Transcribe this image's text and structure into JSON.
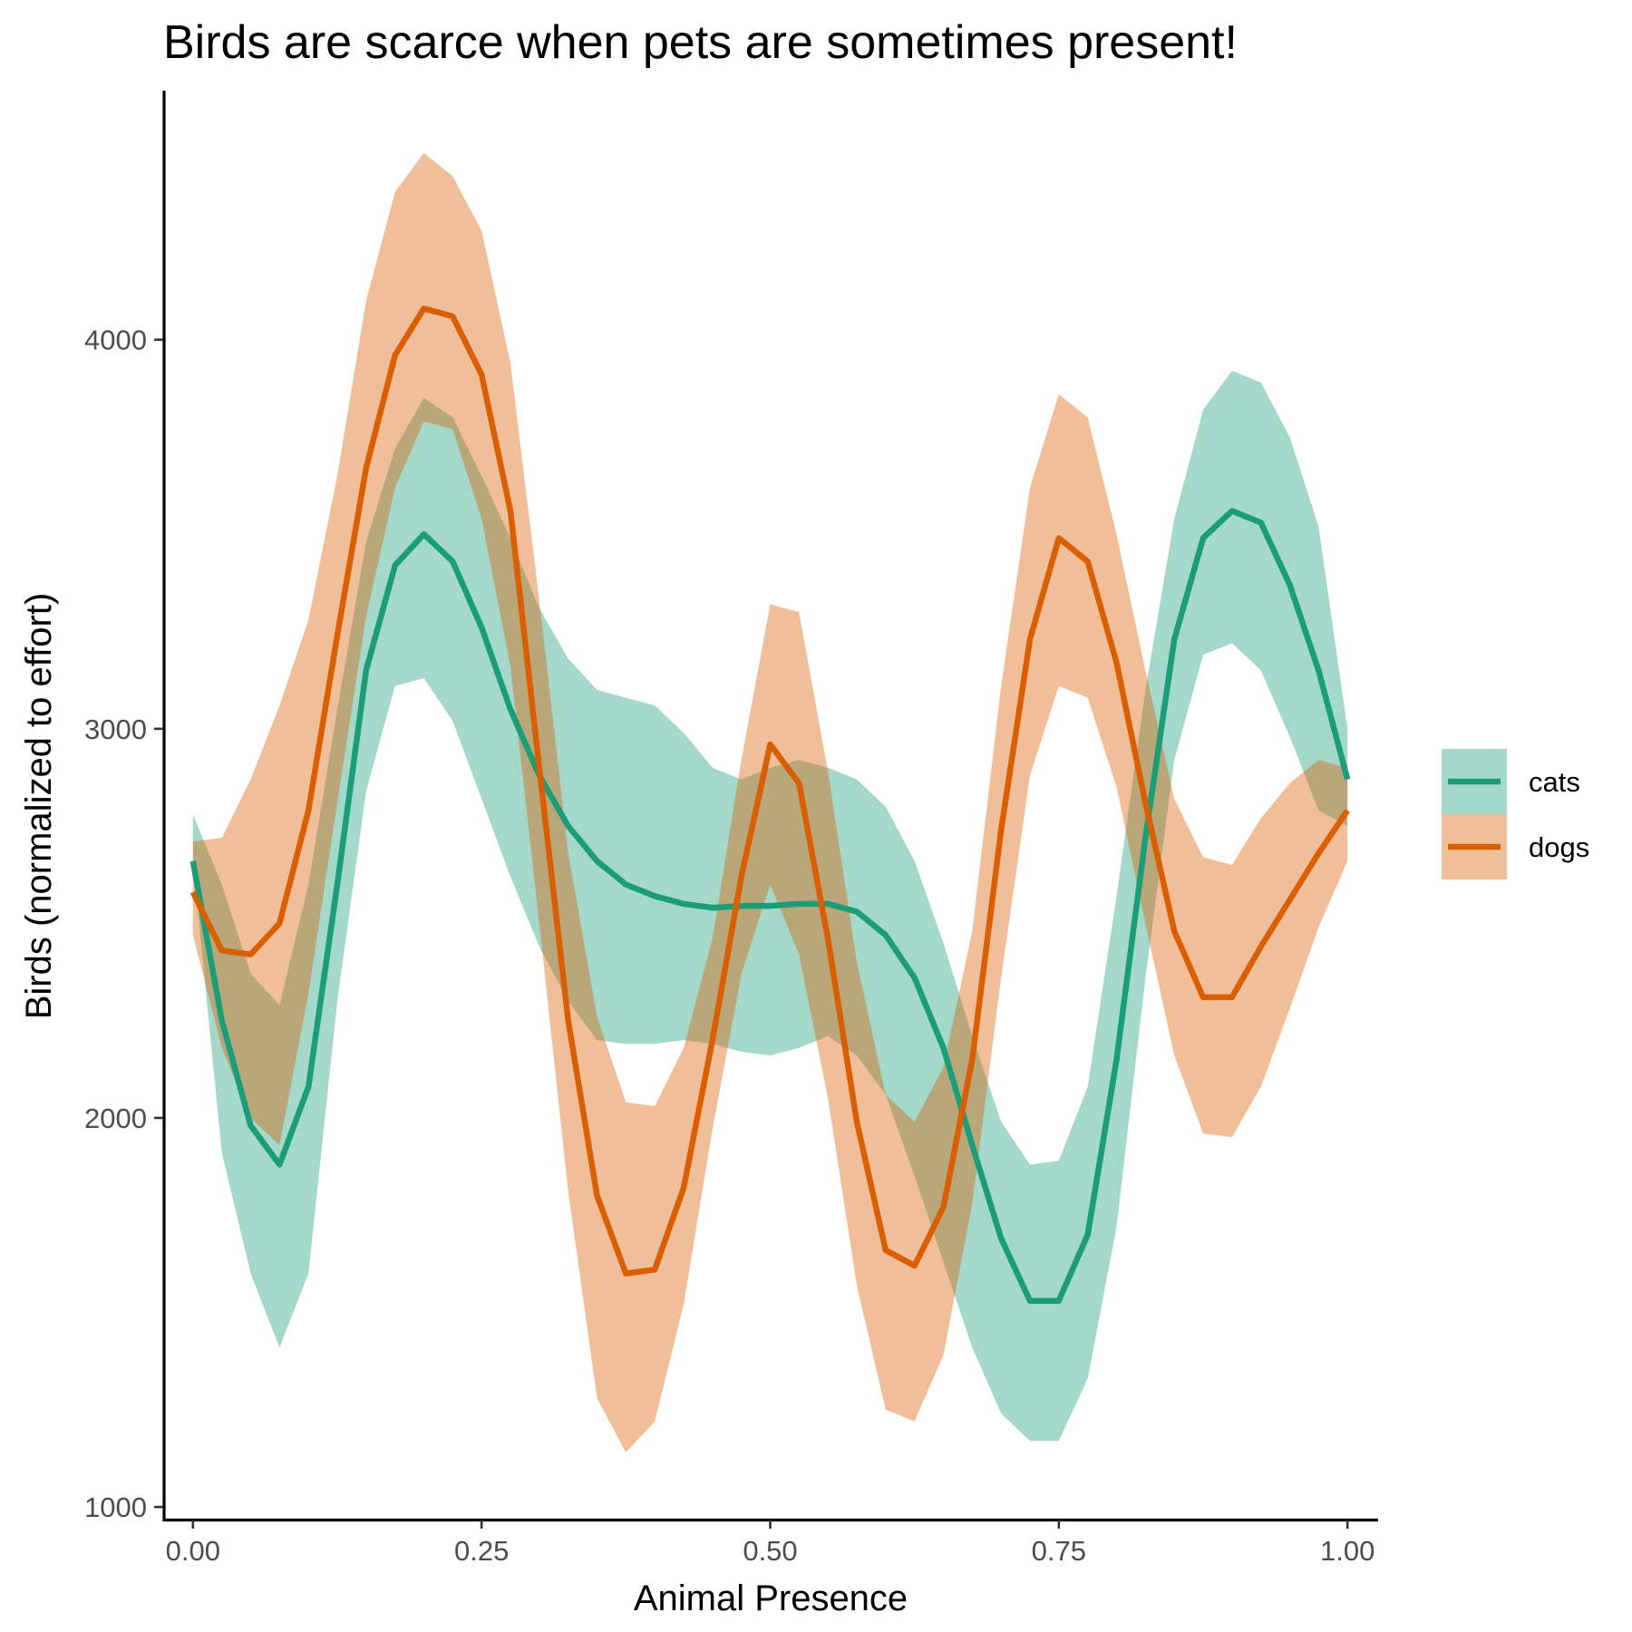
{
  "chart_data": {
    "type": "line",
    "title": "Birds are scarce when pets are sometimes present!",
    "xlabel": "Animal Presence",
    "ylabel": "Birds (normalized to effort)",
    "xlim": [
      -0.025,
      1.025
    ],
    "ylim": [
      970,
      4640
    ],
    "x_ticks": [
      0,
      0.25,
      0.5,
      0.75,
      1
    ],
    "x_tick_labels": [
      "0.00",
      "0.25",
      "0.50",
      "0.75",
      "1.00"
    ],
    "y_ticks": [
      1000,
      2000,
      3000,
      4000
    ],
    "y_tick_labels": [
      "1000",
      "2000",
      "3000",
      "4000"
    ],
    "legend_position": "right",
    "grid": false,
    "x": [
      0.0,
      0.025,
      0.05,
      0.075,
      0.1,
      0.125,
      0.15,
      0.175,
      0.2,
      0.225,
      0.25,
      0.275,
      0.3,
      0.325,
      0.35,
      0.375,
      0.4,
      0.425,
      0.45,
      0.475,
      0.5,
      0.525,
      0.55,
      0.575,
      0.6,
      0.625,
      0.65,
      0.675,
      0.7,
      0.725,
      0.75,
      0.775,
      0.8,
      0.825,
      0.85,
      0.875,
      0.9,
      0.925,
      0.95,
      0.975,
      1.0
    ],
    "series": [
      {
        "name": "cats",
        "color": "#1b9e77",
        "ribbon_color": "#a6dbca",
        "values": [
          2660,
          2250,
          1980,
          1880,
          2080,
          2600,
          3150,
          3420,
          3500,
          3430,
          3260,
          3050,
          2880,
          2750,
          2660,
          2600,
          2570,
          2550,
          2540,
          2545,
          2545,
          2550,
          2550,
          2530,
          2470,
          2360,
          2180,
          1930,
          1690,
          1530,
          1530,
          1700,
          2150,
          2720,
          3230,
          3490,
          3560,
          3530,
          3370,
          3150,
          2870
        ],
        "lower": [
          2660,
          1910,
          1600,
          1410,
          1600,
          2300,
          2840,
          3110,
          3130,
          3020,
          2820,
          2620,
          2440,
          2300,
          2200,
          2190,
          2190,
          2200,
          2190,
          2170,
          2160,
          2180,
          2210,
          2160,
          2060,
          1850,
          1630,
          1410,
          1240,
          1170,
          1170,
          1330,
          1720,
          2360,
          2920,
          3190,
          3220,
          3150,
          2980,
          2790,
          2750
        ],
        "upper": [
          2780,
          2600,
          2370,
          2290,
          2600,
          3050,
          3480,
          3720,
          3850,
          3800,
          3650,
          3490,
          3310,
          3180,
          3100,
          3080,
          3060,
          2990,
          2900,
          2870,
          2900,
          2920,
          2900,
          2870,
          2800,
          2660,
          2450,
          2210,
          1990,
          1880,
          1890,
          2080,
          2570,
          3100,
          3540,
          3820,
          3920,
          3890,
          3750,
          3520,
          3000
        ]
      },
      {
        "name": "dogs",
        "color": "#d95f02",
        "ribbon_color": "#f0be99",
        "values": [
          2580,
          2430,
          2420,
          2500,
          2790,
          3240,
          3670,
          3960,
          4080,
          4060,
          3910,
          3560,
          2900,
          2250,
          1800,
          1600,
          1610,
          1820,
          2200,
          2620,
          2960,
          2860,
          2460,
          1990,
          1660,
          1620,
          1770,
          2150,
          2740,
          3230,
          3490,
          3430,
          3170,
          2810,
          2480,
          2310,
          2310,
          2440,
          2560,
          2680,
          2790
        ],
        "lower": [
          2470,
          2180,
          2000,
          1930,
          2320,
          2810,
          3290,
          3620,
          3790,
          3770,
          3540,
          3160,
          2500,
          1810,
          1280,
          1140,
          1220,
          1520,
          1970,
          2370,
          2600,
          2420,
          2050,
          1570,
          1250,
          1220,
          1390,
          1780,
          2360,
          2880,
          3110,
          3080,
          2850,
          2500,
          2160,
          1960,
          1950,
          2080,
          2280,
          2490,
          2660
        ],
        "upper": [
          2710,
          2720,
          2870,
          3060,
          3280,
          3650,
          4100,
          4380,
          4480,
          4420,
          4280,
          3940,
          3330,
          2680,
          2260,
          2040,
          2030,
          2180,
          2460,
          2920,
          3320,
          3300,
          2890,
          2400,
          2060,
          1990,
          2130,
          2480,
          3110,
          3620,
          3860,
          3800,
          3500,
          3150,
          2820,
          2670,
          2650,
          2770,
          2860,
          2920,
          2900
        ]
      }
    ]
  }
}
